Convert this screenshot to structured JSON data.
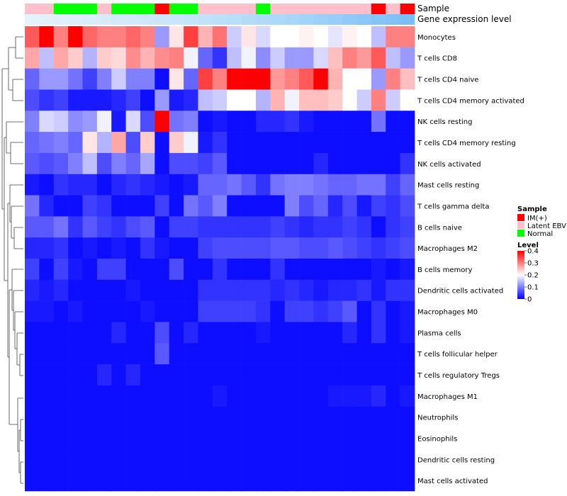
{
  "chart_data": {
    "type": "heatmap",
    "annotation_labels": {
      "sample": "Sample",
      "expression": "Gene expression level"
    },
    "sample_groups": [
      "Latent EBV",
      "Latent EBV",
      "Normal",
      "Normal",
      "Normal",
      "Latent EBV",
      "Normal",
      "Normal",
      "Normal",
      "IM(+)",
      "Normal",
      "Normal",
      "Latent EBV",
      "Latent EBV",
      "Latent EBV",
      "Latent EBV",
      "Normal",
      "Latent EBV",
      "Latent EBV",
      "Latent EBV",
      "Latent EBV",
      "Latent EBV",
      "Latent EBV",
      "Latent EBV",
      "IM(+)",
      "Latent EBV",
      "IM(+)"
    ],
    "expression_colors": [
      "#e6f2fa",
      "#e3f1fa",
      "#e0effa",
      "#ddeefa",
      "#daedfa",
      "#d7ecfa",
      "#d4eafa",
      "#d1e9fa",
      "#cee8fa",
      "#cbe6fa",
      "#c8e5fa",
      "#c4e4fa",
      "#c0e2fa",
      "#bce0fa",
      "#b8def9",
      "#b4dcf9",
      "#b0daf9",
      "#acd8f9",
      "#a8d6f9",
      "#a2d3f8",
      "#9dd0f8",
      "#97cdf8",
      "#92caf7",
      "#8cc7f7",
      "#87c4f6",
      "#81c1f6",
      "#7bbef5"
    ],
    "rows": [
      "Monocytes",
      "T cells CD8",
      "T cells CD4 naive",
      "T cells CD4 memory activated",
      "NK cells resting",
      "T cells CD4 memory resting",
      "NK cells activated",
      "Mast cells resting",
      "T cells gamma delta",
      "B cells naive",
      "Macrophages M2",
      "B cells memory",
      "Dendritic cells activated",
      "Macrophages M0",
      "Plasma cells",
      "T cells follicular helper",
      "T cells regulatory  Tregs",
      "Macrophages M1",
      "Neutrophils",
      "Eosinophils",
      "Dendritic cells resting",
      "Mast cells activated"
    ],
    "values": [
      [
        0.33,
        0.4,
        0.3,
        0.4,
        0.32,
        0.3,
        0.3,
        0.32,
        0.3,
        0.12,
        0.22,
        0.35,
        0.26,
        0.31,
        0.16,
        0.22,
        0.17,
        0.2,
        0.2,
        0.21,
        0.2,
        0.18,
        0.21,
        0.2,
        0.15,
        0.3,
        0.3
      ],
      [
        0.27,
        0.15,
        0.27,
        0.24,
        0.14,
        0.24,
        0.23,
        0.29,
        0.26,
        0.29,
        0.3,
        0.19,
        0.08,
        0.04,
        0.15,
        0.19,
        0.11,
        0.16,
        0.12,
        0.12,
        0.17,
        0.25,
        0.3,
        0.28,
        0.33,
        0.15,
        0.12
      ],
      [
        0.08,
        0.12,
        0.12,
        0.09,
        0.05,
        0.1,
        0.16,
        0.1,
        0.1,
        0.01,
        0.22,
        0.08,
        0.35,
        0.3,
        0.4,
        0.4,
        0.4,
        0.28,
        0.3,
        0.33,
        0.4,
        0.26,
        0.2,
        0.2,
        0.12,
        0.3,
        0.25
      ],
      [
        0.06,
        0.04,
        0.05,
        0.02,
        0.02,
        0.02,
        0.03,
        0.05,
        0.01,
        0.12,
        0.02,
        0.03,
        0.15,
        0.16,
        0.2,
        0.2,
        0.14,
        0.26,
        0.19,
        0.25,
        0.25,
        0.24,
        0.2,
        0.16,
        0.3,
        0.16,
        0.2
      ],
      [
        0.1,
        0.17,
        0.16,
        0.11,
        0.12,
        0.19,
        0.02,
        0.17,
        0.06,
        0.4,
        0.09,
        0.1,
        0.01,
        0.02,
        0.01,
        0.01,
        0.03,
        0.03,
        0.04,
        0.02,
        0.01,
        0.01,
        0.01,
        0.01,
        0.09,
        0.01,
        0.01
      ],
      [
        0.08,
        0.09,
        0.1,
        0.08,
        0.22,
        0.14,
        0.27,
        0.06,
        0.24,
        0.01,
        0.24,
        0.19,
        0.02,
        0.04,
        0.01,
        0.01,
        0.01,
        0.01,
        0.01,
        0.01,
        0.01,
        0.01,
        0.01,
        0.01,
        0.01,
        0.01,
        0.01
      ],
      [
        0.07,
        0.06,
        0.07,
        0.1,
        0.15,
        0.06,
        0.1,
        0.08,
        0.13,
        0.01,
        0.06,
        0.06,
        0.05,
        0.07,
        0.01,
        0.01,
        0.01,
        0.01,
        0.01,
        0.01,
        0.03,
        0.01,
        0.01,
        0.01,
        0.01,
        0.01,
        0.04
      ],
      [
        0.02,
        0.01,
        0.04,
        0.03,
        0.03,
        0.01,
        0.03,
        0.04,
        0.03,
        0.02,
        0.01,
        0.02,
        0.08,
        0.08,
        0.09,
        0.07,
        0.04,
        0.09,
        0.1,
        0.1,
        0.09,
        0.08,
        0.08,
        0.09,
        0.09,
        0.05,
        0.08
      ],
      [
        0.09,
        0.03,
        0.01,
        0.01,
        0.05,
        0.04,
        0.01,
        0.01,
        0.01,
        0.05,
        0.01,
        0.09,
        0.07,
        0.1,
        0.01,
        0.01,
        0.01,
        0.01,
        0.1,
        0.06,
        0.08,
        0.03,
        0.06,
        0.02,
        0.05,
        0.04,
        0.06
      ],
      [
        0.07,
        0.07,
        0.09,
        0.04,
        0.07,
        0.05,
        0.04,
        0.06,
        0.07,
        0.01,
        0.05,
        0.05,
        0.04,
        0.04,
        0.04,
        0.04,
        0.04,
        0.05,
        0.04,
        0.03,
        0.04,
        0.04,
        0.05,
        0.04,
        0.01,
        0.04,
        0.05
      ],
      [
        0.03,
        0.03,
        0.04,
        0.01,
        0.02,
        0.01,
        0.02,
        0.01,
        0.04,
        0.02,
        0.01,
        0.01,
        0.05,
        0.06,
        0.06,
        0.06,
        0.06,
        0.07,
        0.07,
        0.06,
        0.06,
        0.07,
        0.06,
        0.05,
        0.04,
        0.05,
        0.06
      ],
      [
        0.05,
        0.01,
        0.05,
        0.02,
        0.01,
        0.05,
        0.05,
        0.01,
        0.01,
        0.01,
        0.06,
        0.01,
        0.01,
        0.04,
        0.01,
        0.01,
        0.01,
        0.04,
        0.01,
        0.01,
        0.01,
        0.01,
        0.01,
        0.01,
        0.02,
        0.01,
        0.02
      ],
      [
        0.03,
        0.02,
        0.03,
        0.01,
        0.01,
        0.01,
        0.01,
        0.02,
        0.01,
        0.01,
        0.01,
        0.01,
        0.04,
        0.04,
        0.04,
        0.04,
        0.04,
        0.03,
        0.04,
        0.03,
        0.02,
        0.03,
        0.03,
        0.04,
        0.02,
        0.04,
        0.04
      ],
      [
        0.02,
        0.02,
        0.01,
        0.02,
        0.01,
        0.01,
        0.01,
        0.01,
        0.02,
        0.01,
        0.01,
        0.01,
        0.05,
        0.05,
        0.05,
        0.05,
        0.04,
        0.01,
        0.05,
        0.05,
        0.04,
        0.05,
        0.07,
        0.01,
        0.04,
        0.01,
        0.02
      ],
      [
        0.01,
        0.01,
        0.01,
        0.01,
        0.01,
        0.01,
        0.03,
        0.01,
        0.01,
        0.06,
        0.01,
        0.03,
        0.01,
        0.01,
        0.01,
        0.01,
        0.02,
        0.01,
        0.01,
        0.01,
        0.01,
        0.01,
        0.03,
        0.01,
        0.04,
        0.01,
        0.02
      ],
      [
        0.01,
        0.01,
        0.01,
        0.01,
        0.01,
        0.01,
        0.01,
        0.01,
        0.01,
        0.07,
        0.01,
        0.01,
        0.01,
        0.01,
        0.01,
        0.01,
        0.01,
        0.01,
        0.01,
        0.01,
        0.01,
        0.01,
        0.01,
        0.01,
        0.01,
        0.01,
        0.01
      ],
      [
        0.01,
        0.01,
        0.01,
        0.01,
        0.01,
        0.03,
        0.01,
        0.03,
        0.01,
        0.01,
        0.01,
        0.01,
        0.01,
        0.01,
        0.01,
        0.01,
        0.01,
        0.01,
        0.01,
        0.01,
        0.01,
        0.01,
        0.01,
        0.01,
        0.01,
        0.01,
        0.01
      ],
      [
        0.01,
        0.01,
        0.01,
        0.01,
        0.01,
        0.01,
        0.01,
        0.01,
        0.01,
        0.01,
        0.01,
        0.01,
        0.01,
        0.02,
        0.01,
        0.01,
        0.01,
        0.01,
        0.01,
        0.01,
        0.01,
        0.02,
        0.02,
        0.02,
        0.03,
        0.01,
        0.02
      ],
      [
        0.01,
        0.01,
        0.01,
        0.01,
        0.01,
        0.01,
        0.01,
        0.01,
        0.01,
        0.01,
        0.01,
        0.01,
        0.01,
        0.01,
        0.01,
        0.01,
        0.01,
        0.01,
        0.01,
        0.01,
        0.01,
        0.01,
        0.01,
        0.01,
        0.01,
        0.01,
        0.01
      ],
      [
        0.01,
        0.01,
        0.01,
        0.01,
        0.01,
        0.01,
        0.01,
        0.01,
        0.01,
        0.01,
        0.01,
        0.01,
        0.01,
        0.01,
        0.01,
        0.01,
        0.01,
        0.01,
        0.01,
        0.01,
        0.01,
        0.01,
        0.01,
        0.01,
        0.01,
        0.01,
        0.01
      ],
      [
        0.01,
        0.01,
        0.01,
        0.01,
        0.01,
        0.01,
        0.01,
        0.01,
        0.01,
        0.01,
        0.01,
        0.01,
        0.01,
        0.01,
        0.01,
        0.01,
        0.01,
        0.01,
        0.01,
        0.01,
        0.01,
        0.01,
        0.01,
        0.01,
        0.01,
        0.01,
        0.01
      ],
      [
        0.01,
        0.01,
        0.01,
        0.01,
        0.01,
        0.01,
        0.01,
        0.01,
        0.01,
        0.01,
        0.01,
        0.01,
        0.01,
        0.01,
        0.01,
        0.01,
        0.01,
        0.01,
        0.01,
        0.01,
        0.01,
        0.01,
        0.01,
        0.01,
        0.01,
        0.01,
        0.01
      ]
    ],
    "value_range": [
      0,
      0.4
    ],
    "legend": {
      "sample_title": "Sample",
      "sample_items": [
        {
          "label": "IM(+)",
          "color": "#ff0000"
        },
        {
          "label": "Latent EBV",
          "color": "#ffc0cb"
        },
        {
          "label": "Normal",
          "color": "#00ff00"
        }
      ],
      "level_title": "Level",
      "level_ticks": [
        "0.4",
        "0.3",
        "0.2",
        "0.1",
        "0"
      ],
      "level_tick_values": [
        0.4,
        0.3,
        0.2,
        0.1,
        0
      ]
    },
    "color_scale": {
      "low": "#0000ff",
      "mid": "#ffffff",
      "high": "#ff0000"
    }
  }
}
